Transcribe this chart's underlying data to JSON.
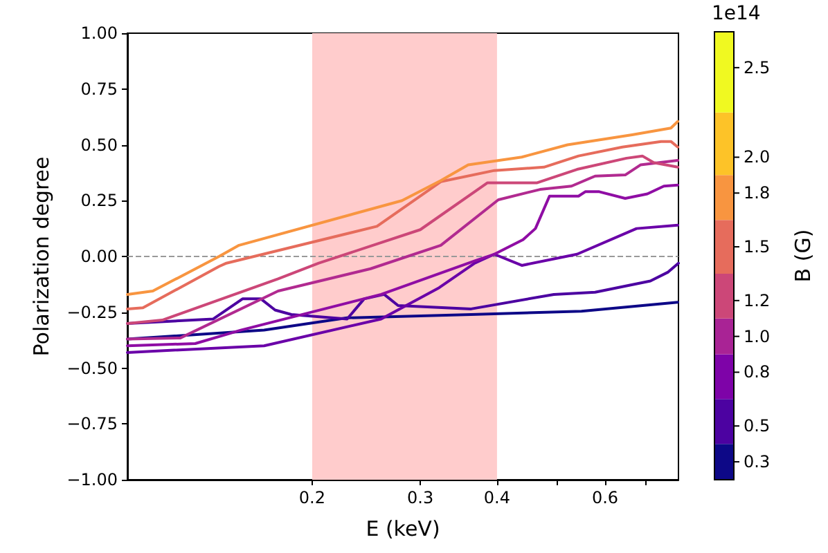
{
  "chart_data": {
    "type": "line",
    "xlabel": "E (keV)",
    "ylabel": "Polarization degree",
    "clabel": "B (G)",
    "log": "x",
    "grid": false,
    "marker": "none",
    "line_style": "solid",
    "xlim": [
      0.1,
      0.79
    ],
    "xticks": [
      0.2,
      0.3,
      0.4,
      {
        "value": 0.5,
        "label": null
      },
      0.6,
      {
        "value": 0.7,
        "label": null
      }
    ],
    "ylim": [
      -1,
      1
    ],
    "yticks": [
      {
        "value": -1,
        "label": "−1.00"
      },
      {
        "value": -0.75,
        "label": "−0.75"
      },
      {
        "value": -0.5,
        "label": "−0.50"
      },
      {
        "value": -0.25,
        "label": "−0.25"
      },
      {
        "value": 0,
        "label": "0.00"
      },
      {
        "value": 0.25,
        "label": "0.25"
      },
      {
        "value": 0.5,
        "label": "0.50"
      },
      {
        "value": 0.75,
        "label": "0.75"
      },
      {
        "value": 1,
        "label": "1.00"
      }
    ],
    "clim": [
      0.2,
      2.7
    ],
    "cticks": [
      {
        "value": 0.3,
        "label": "0.3"
      },
      {
        "value": 0.5,
        "label": "0.5"
      },
      {
        "value": 0.8,
        "label": "0.8"
      },
      {
        "value": 1.0,
        "label": "1.0"
      },
      {
        "value": 1.2,
        "label": "1.2"
      },
      {
        "value": 1.5,
        "label": "1.5"
      },
      {
        "value": 1.8,
        "label": "1.8"
      },
      {
        "value": 2.0,
        "label": "2.0"
      },
      {
        "value": 2.5,
        "label": "2.5"
      }
    ],
    "colors": [
      "#0d0887",
      "#4c02a1",
      "#7e03a8",
      "#a92395",
      "#cc4778",
      "#e66c5c",
      "#f89540",
      "#fdc328",
      "#f0f921"
    ],
    "annotations": [
      "1e14"
    ],
    "bands": [
      {
        "axis": "x",
        "from": 0.2,
        "to": 0.4,
        "color": "#ffcccc"
      }
    ],
    "ref_lines": [
      {
        "axis": "y",
        "value": 0,
        "color": "#999999",
        "line_style": "dashed"
      }
    ],
    "series": [
      {
        "color": "#0d0887",
        "x": [
          0.1,
          0.167,
          0.228,
          0.363,
          0.549,
          0.788
        ],
        "values": [
          -0.37,
          -0.33,
          -0.275,
          -0.26,
          -0.245,
          -0.205
        ]
      },
      {
        "color": "#4c02a1",
        "x": [
          0.1,
          0.138,
          0.154,
          0.165,
          0.174,
          0.185,
          0.228,
          0.243,
          0.262,
          0.276,
          0.363,
          0.495,
          0.578,
          0.711,
          0.76,
          0.79
        ],
        "values": [
          -0.3,
          -0.28,
          -0.19,
          -0.19,
          -0.24,
          -0.26,
          -0.28,
          -0.19,
          -0.17,
          -0.22,
          -0.235,
          -0.17,
          -0.16,
          -0.11,
          -0.07,
          -0.03
        ]
      },
      {
        "color": "#6a00a8",
        "x": [
          0.1,
          0.167,
          0.259,
          0.322,
          0.368,
          0.396,
          0.439,
          0.54,
          0.675,
          0.788
        ],
        "values": [
          -0.43,
          -0.4,
          -0.28,
          -0.14,
          -0.03,
          0.01,
          -0.04,
          0.01,
          0.125,
          0.14
        ]
      },
      {
        "color": "#8f0da4",
        "x": [
          0.1,
          0.129,
          0.153,
          0.259,
          0.368,
          0.396,
          0.441,
          0.462,
          0.487,
          0.543,
          0.557,
          0.587,
          0.647,
          0.703,
          0.748,
          0.788
        ],
        "values": [
          -0.4,
          -0.39,
          -0.33,
          -0.17,
          -0.02,
          0.01,
          0.075,
          0.125,
          0.27,
          0.27,
          0.29,
          0.29,
          0.26,
          0.28,
          0.315,
          0.32
        ]
      },
      {
        "color": "#b12a90",
        "x": [
          0.1,
          0.122,
          0.176,
          0.249,
          0.324,
          0.402,
          0.47,
          0.529,
          0.578,
          0.647,
          0.685,
          0.788
        ],
        "values": [
          -0.37,
          -0.365,
          -0.155,
          -0.055,
          0.05,
          0.254,
          0.3,
          0.315,
          0.36,
          0.365,
          0.41,
          0.43
        ]
      },
      {
        "color": "#cc4778",
        "x": [
          0.1,
          0.114,
          0.176,
          0.205,
          0.3,
          0.386,
          0.465,
          0.54,
          0.65,
          0.69,
          0.72,
          0.788
        ],
        "values": [
          -0.3,
          -0.285,
          -0.1,
          -0.03,
          0.12,
          0.33,
          0.33,
          0.39,
          0.44,
          0.45,
          0.42,
          0.4
        ]
      },
      {
        "color": "#e66c5c",
        "x": [
          0.1,
          0.106,
          0.141,
          0.145,
          0.255,
          0.324,
          0.396,
          0.477,
          0.543,
          0.64,
          0.74,
          0.768,
          0.788
        ],
        "values": [
          -0.235,
          -0.23,
          -0.045,
          -0.03,
          0.135,
          0.335,
          0.385,
          0.4,
          0.45,
          0.49,
          0.515,
          0.515,
          0.49
        ]
      },
      {
        "color": "#f89540",
        "x": [
          0.1,
          0.11,
          0.141,
          0.152,
          0.28,
          0.324,
          0.359,
          0.439,
          0.521,
          0.664,
          0.768,
          0.788
        ],
        "values": [
          -0.17,
          -0.155,
          0.0,
          0.05,
          0.25,
          0.34,
          0.41,
          0.445,
          0.5,
          0.545,
          0.575,
          0.605
        ]
      }
    ]
  }
}
